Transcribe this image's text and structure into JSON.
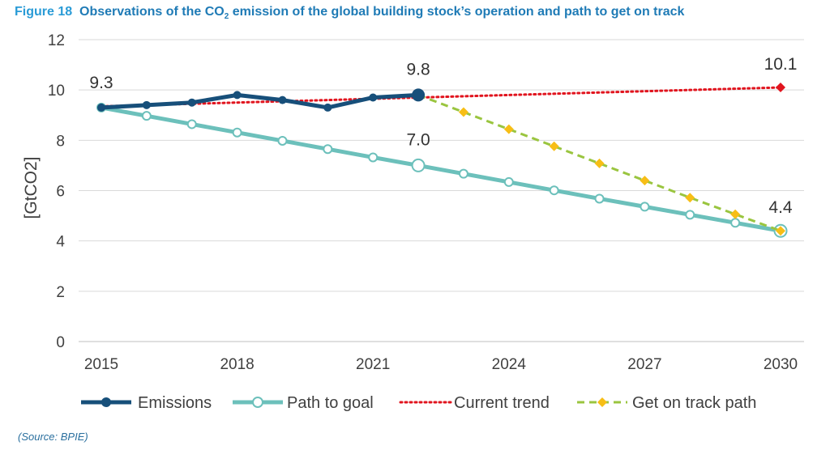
{
  "figure": {
    "label": "Figure 18",
    "title_part1": "Observations of the CO",
    "title_sub": "2",
    "title_part2": " emission of the global building stock’s operation and path to get on track"
  },
  "source": "(Source: BPIE)",
  "chart_data": {
    "type": "line",
    "xlabel": "",
    "ylabel": "[GtCO2]",
    "xlim": [
      2015,
      2030
    ],
    "ylim": [
      0,
      12
    ],
    "x_ticks": [
      2015,
      2018,
      2021,
      2024,
      2027,
      2030
    ],
    "y_ticks": [
      0,
      2,
      4,
      6,
      8,
      10,
      12
    ],
    "grid": true,
    "legend_position": "bottom",
    "series": [
      {
        "name": "Emissions",
        "color": "#174f7a",
        "style": "solid-thick-markers",
        "x": [
          2015,
          2016,
          2017,
          2018,
          2019,
          2020,
          2021,
          2022
        ],
        "y": [
          9.3,
          9.4,
          9.5,
          9.8,
          9.6,
          9.3,
          9.7,
          9.8
        ]
      },
      {
        "name": "Path to goal",
        "color": "#6cc0bb",
        "style": "solid-thick-open-markers",
        "x": [
          2015,
          2016,
          2017,
          2018,
          2019,
          2020,
          2021,
          2022,
          2023,
          2024,
          2025,
          2026,
          2027,
          2028,
          2029,
          2030
        ],
        "y": [
          9.3,
          8.97,
          8.64,
          8.31,
          7.98,
          7.65,
          7.32,
          7.0,
          6.67,
          6.34,
          6.01,
          5.68,
          5.36,
          5.04,
          4.72,
          4.4
        ]
      },
      {
        "name": "Current trend",
        "color": "#e1141e",
        "style": "dotted",
        "x": [
          2015,
          2030
        ],
        "y": [
          9.35,
          10.1
        ]
      },
      {
        "name": "Get on track path",
        "color": "#9ac53f",
        "marker_color": "#f7be16",
        "style": "dashed-diamond-markers",
        "x": [
          2022,
          2023,
          2024,
          2025,
          2026,
          2027,
          2028,
          2029,
          2030
        ],
        "y": [
          9.8,
          9.12,
          8.44,
          7.76,
          7.08,
          6.4,
          5.72,
          5.06,
          4.4
        ]
      }
    ],
    "annotations": [
      {
        "text": "9.3",
        "x": 2015,
        "y": 9.3
      },
      {
        "text": "9.8",
        "x": 2022,
        "y": 9.8
      },
      {
        "text": "7.0",
        "x": 2022,
        "y": 7.0
      },
      {
        "text": "10.1",
        "x": 2030,
        "y": 10.1
      },
      {
        "text": "4.4",
        "x": 2030,
        "y": 4.4
      }
    ]
  }
}
